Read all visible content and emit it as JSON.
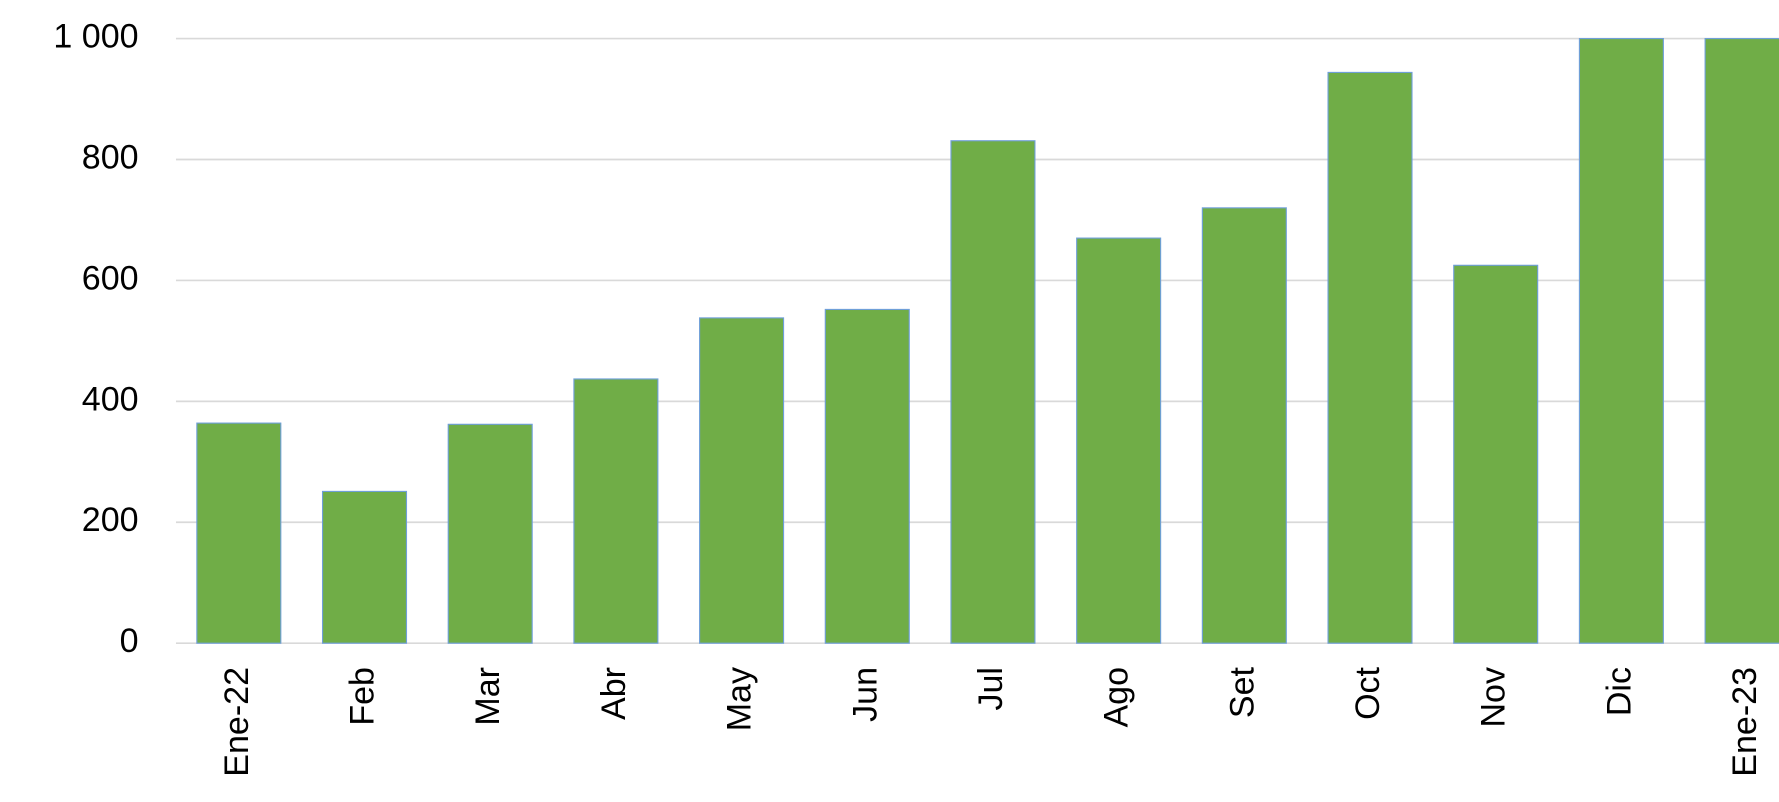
{
  "chart_data": {
    "type": "bar",
    "categories": [
      "Ene-22",
      "Feb",
      "Mar",
      "Abr",
      "May",
      "Jun",
      "Jul",
      "Ago",
      "Set",
      "Oct",
      "Nov",
      "Dic",
      "Ene-23"
    ],
    "values": [
      364,
      251,
      362,
      437,
      538,
      552,
      831,
      670,
      720,
      944,
      625,
      1000,
      1000
    ],
    "color": "#70ad47",
    "ylim": [
      0,
      1000
    ],
    "yticks": [
      0,
      200,
      400,
      600,
      800,
      {
        "value": 1000,
        "label": "1 000"
      }
    ],
    "grid": true
  }
}
